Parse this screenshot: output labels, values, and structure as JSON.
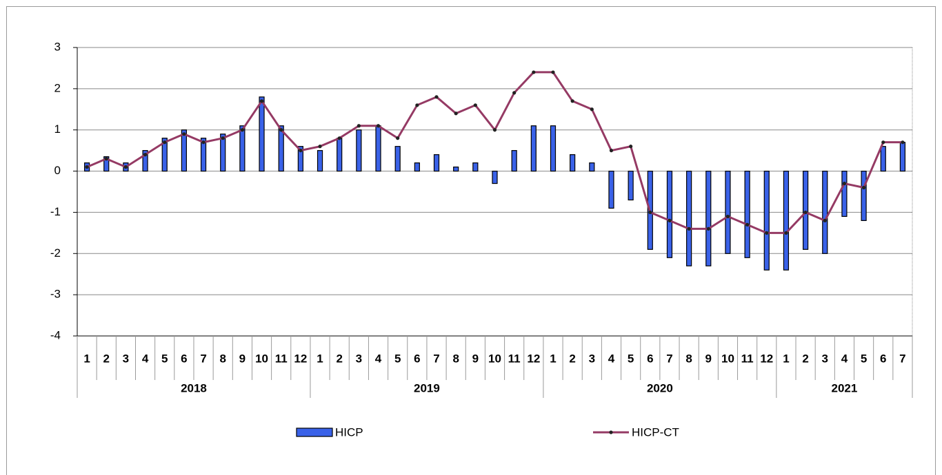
{
  "chart_data": {
    "type": "bar-line",
    "groups": [
      {
        "label": "2018",
        "categories": [
          "1",
          "2",
          "3",
          "4",
          "5",
          "6",
          "7",
          "8",
          "9",
          "10",
          "11",
          "12"
        ]
      },
      {
        "label": "2019",
        "categories": [
          "1",
          "2",
          "3",
          "4",
          "5",
          "6",
          "7",
          "8",
          "9",
          "10",
          "11",
          "12"
        ]
      },
      {
        "label": "2020",
        "categories": [
          "1",
          "2",
          "3",
          "4",
          "5",
          "6",
          "7",
          "8",
          "9",
          "10",
          "11",
          "12"
        ]
      },
      {
        "label": "2021",
        "categories": [
          "1",
          "2",
          "3",
          "4",
          "5",
          "6",
          "7"
        ]
      }
    ],
    "series": [
      {
        "name": "HICP",
        "kind": "bar",
        "color": "#3a62e8",
        "values": [
          0.2,
          0.35,
          0.2,
          0.5,
          0.8,
          1.0,
          0.8,
          0.9,
          1.1,
          1.8,
          1.1,
          0.6,
          0.5,
          0.8,
          1.0,
          1.1,
          0.6,
          0.2,
          0.4,
          0.1,
          0.2,
          -0.3,
          0.5,
          1.1,
          1.1,
          0.4,
          0.2,
          -0.9,
          -0.7,
          -1.9,
          -2.1,
          -2.3,
          -2.3,
          -2.0,
          -2.1,
          -2.4,
          -2.4,
          -1.9,
          -2.0,
          -1.1,
          -1.2,
          0.6,
          0.7
        ]
      },
      {
        "name": "HICP-CT",
        "kind": "line",
        "color": "#953a64",
        "values": [
          0.1,
          0.3,
          0.1,
          0.4,
          0.7,
          0.9,
          0.7,
          0.8,
          1.0,
          1.7,
          1.0,
          0.5,
          0.6,
          0.8,
          1.1,
          1.1,
          0.8,
          1.6,
          1.8,
          1.4,
          1.6,
          1.0,
          1.9,
          2.4,
          2.4,
          1.7,
          1.5,
          0.5,
          0.6,
          -1.0,
          -1.2,
          -1.4,
          -1.4,
          -1.1,
          -1.3,
          -1.5,
          -1.5,
          -1.0,
          -1.2,
          -0.3,
          -0.4,
          0.7,
          0.7
        ]
      }
    ],
    "ylim": [
      -4,
      3
    ],
    "yticks": [
      -4,
      -3,
      -2,
      -1,
      0,
      1,
      2,
      3
    ],
    "grid": true,
    "legend": "bottom"
  }
}
